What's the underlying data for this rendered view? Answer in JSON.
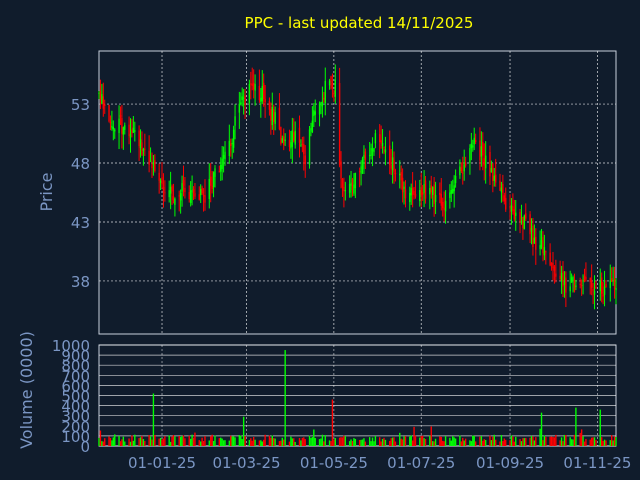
{
  "chart_data": [
    {
      "type": "candlestick",
      "title": "PPC - last updated 14/11/2025",
      "ylabel": "Price",
      "ylim": [
        33.5,
        57.5
      ],
      "y_ticks": [
        {
          "value": 38,
          "label": "38"
        },
        {
          "value": 43,
          "label": "43"
        },
        {
          "value": 48,
          "label": "48"
        },
        {
          "value": 53,
          "label": "53"
        }
      ],
      "x_range": [
        "2024-11-18",
        "2025-11-14"
      ],
      "x_ticks": [
        {
          "date": "2025-01-01",
          "label": "01-01-25"
        },
        {
          "date": "2025-03-01",
          "label": "01-03-25"
        },
        {
          "date": "2025-05-01",
          "label": "01-05-25"
        },
        {
          "date": "2025-07-01",
          "label": "01-07-25"
        },
        {
          "date": "2025-09-01",
          "label": "01-09-25"
        },
        {
          "date": "2025-11-01",
          "label": "01-11-25"
        }
      ],
      "close_trend": [
        [
          "2024-11-18",
          53.8
        ],
        [
          "2024-11-22",
          52.6
        ],
        [
          "2024-11-29",
          51.4
        ],
        [
          "2024-12-06",
          51.0
        ],
        [
          "2024-12-13",
          50.6
        ],
        [
          "2024-12-20",
          48.6
        ],
        [
          "2024-12-27",
          47.5
        ],
        [
          "2025-01-03",
          45.4
        ],
        [
          "2025-01-10",
          45.6
        ],
        [
          "2025-01-17",
          45.8
        ],
        [
          "2025-01-24",
          45.5
        ],
        [
          "2025-01-31",
          45.4
        ],
        [
          "2025-02-07",
          46.8
        ],
        [
          "2025-02-14",
          48.4
        ],
        [
          "2025-02-21",
          51.3
        ],
        [
          "2025-02-28",
          53.6
        ],
        [
          "2025-03-07",
          54.6
        ],
        [
          "2025-03-14",
          53.4
        ],
        [
          "2025-03-21",
          51.6
        ],
        [
          "2025-03-28",
          49.3
        ],
        [
          "2025-04-04",
          50.6
        ],
        [
          "2025-04-11",
          48.6
        ],
        [
          "2025-04-18",
          52.2
        ],
        [
          "2025-04-25",
          54.2
        ],
        [
          "2025-05-02",
          54.4
        ],
        [
          "2025-05-06",
          46.4
        ],
        [
          "2025-05-16",
          46.4
        ],
        [
          "2025-05-23",
          48.2
        ],
        [
          "2025-05-30",
          50.3
        ],
        [
          "2025-06-06",
          49.2
        ],
        [
          "2025-06-13",
          47.6
        ],
        [
          "2025-06-20",
          45.8
        ],
        [
          "2025-06-27",
          45.9
        ],
        [
          "2025-07-04",
          45.5
        ],
        [
          "2025-07-11",
          45.1
        ],
        [
          "2025-07-18",
          44.6
        ],
        [
          "2025-07-25",
          46.7
        ],
        [
          "2025-08-01",
          48.4
        ],
        [
          "2025-08-08",
          49.6
        ],
        [
          "2025-08-15",
          48.2
        ],
        [
          "2025-08-22",
          46.4
        ],
        [
          "2025-08-29",
          44.6
        ],
        [
          "2025-09-05",
          43.8
        ],
        [
          "2025-09-12",
          42.6
        ],
        [
          "2025-09-19",
          41.1
        ],
        [
          "2025-09-26",
          40.4
        ],
        [
          "2025-10-03",
          38.6
        ],
        [
          "2025-10-10",
          37.7
        ],
        [
          "2025-10-17",
          37.6
        ],
        [
          "2025-10-24",
          37.8
        ],
        [
          "2025-10-31",
          37.5
        ],
        [
          "2025-11-07",
          37.2
        ],
        [
          "2025-11-14",
          37.8
        ]
      ],
      "colors": {
        "up": "#00ff00",
        "down": "#ff0000"
      }
    },
    {
      "type": "bar",
      "ylabel": "Volume (0000)",
      "ylim": [
        0,
        1000
      ],
      "y_ticks": [
        {
          "value": 0,
          "label": "0"
        },
        {
          "value": 100,
          "label": "100"
        },
        {
          "value": 200,
          "label": "200"
        },
        {
          "value": 300,
          "label": "300"
        },
        {
          "value": 400,
          "label": "400"
        },
        {
          "value": 500,
          "label": "500"
        },
        {
          "value": 600,
          "label": "600"
        },
        {
          "value": 700,
          "label": "700"
        },
        {
          "value": 800,
          "label": "800"
        },
        {
          "value": 900,
          "label": "900"
        },
        {
          "value": 1000,
          "label": "1000"
        }
      ],
      "baseline_volume": 80,
      "spikes": [
        [
          "2024-12-26",
          520
        ],
        [
          "2025-02-27",
          290
        ],
        [
          "2025-03-28",
          950
        ],
        [
          "2025-04-30",
          460
        ],
        [
          "2025-09-23",
          330
        ],
        [
          "2025-10-17",
          380
        ],
        [
          "2025-11-03",
          360
        ]
      ],
      "colors": {
        "up": "#00ff00",
        "down": "#ff0000"
      }
    }
  ],
  "colors": {
    "background": "#101c2c",
    "title": "#ffff00",
    "axis_text": "#7b96c4",
    "grid": "#ffffff"
  }
}
